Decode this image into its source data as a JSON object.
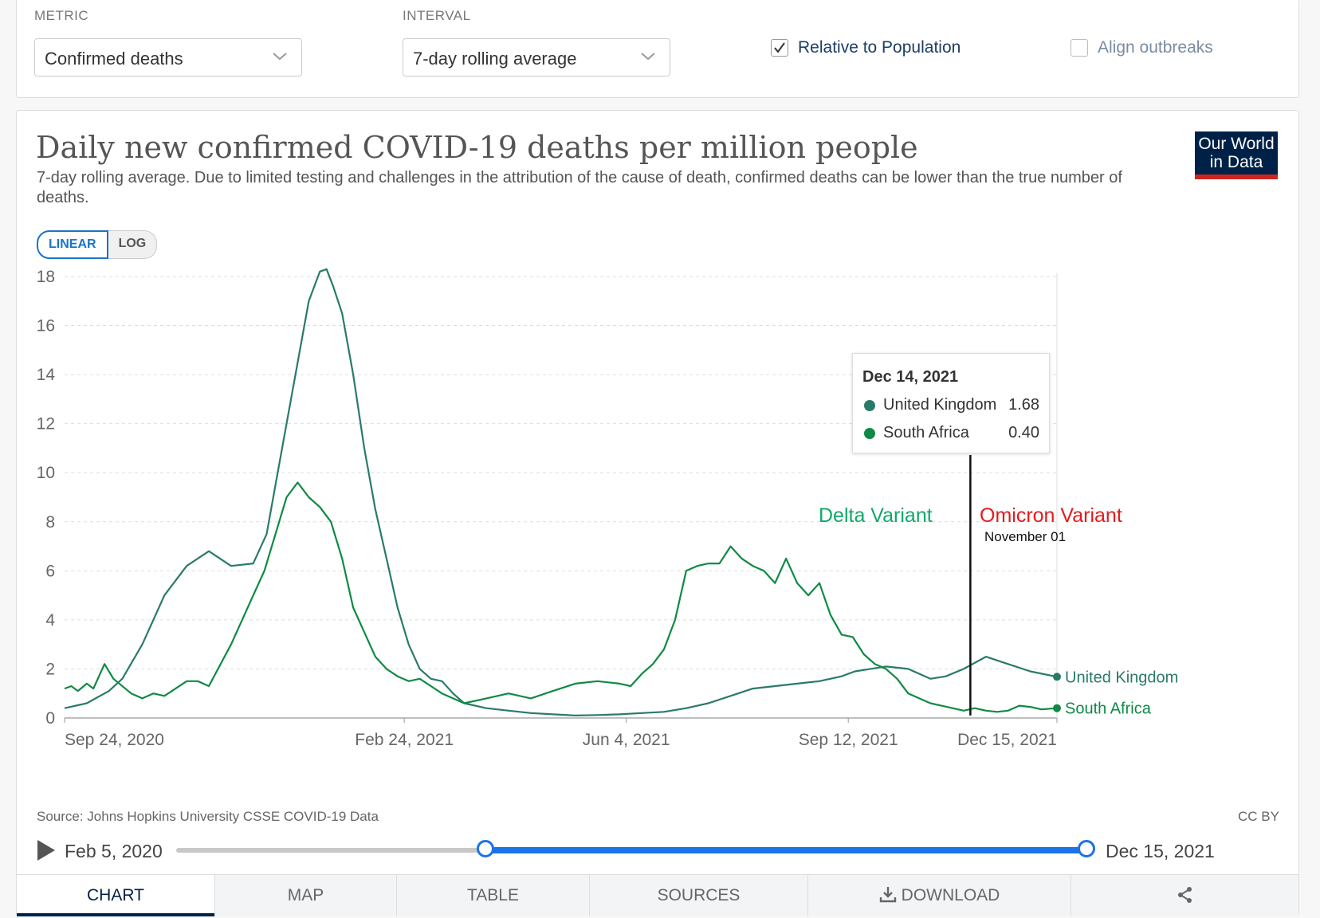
{
  "controls": {
    "metric_label": "METRIC",
    "metric_value": "Confirmed deaths",
    "interval_label": "INTERVAL",
    "interval_value": "7-day rolling average",
    "relative_label": "Relative to Population",
    "relative_checked": true,
    "align_label": "Align outbreaks",
    "align_checked": false
  },
  "logo": {
    "line1": "Our World",
    "line2": "in Data"
  },
  "scale": {
    "linear": "LINEAR",
    "log": "LOG",
    "active": "LINEAR"
  },
  "chart_data": {
    "type": "line",
    "title": "Daily new confirmed COVID-19 deaths per million people",
    "subtitle": "7-day rolling average. Due to limited testing and challenges in the attribution of the cause of death, confirmed deaths can be lower than the true number of deaths.",
    "xlabel": "",
    "ylabel": "",
    "ylim": [
      0,
      18
    ],
    "yticks": [
      0,
      2,
      4,
      6,
      8,
      10,
      12,
      14,
      16,
      18
    ],
    "xlim": [
      0,
      447
    ],
    "xticks": [
      {
        "day": 0,
        "label": "Sep 24, 2020"
      },
      {
        "day": 153,
        "label": "Feb 24, 2021"
      },
      {
        "day": 253,
        "label": "Jun 4, 2021"
      },
      {
        "day": 353,
        "label": "Sep 12, 2021"
      },
      {
        "day": 447,
        "label": "Dec 15, 2021"
      }
    ],
    "series": [
      {
        "name": "United Kingdom",
        "color": "#2a7a6a",
        "x": [
          0,
          10,
          20,
          26,
          35,
          45,
          55,
          65,
          75,
          85,
          91,
          95,
          100,
          110,
          115,
          118,
          121,
          125,
          130,
          135,
          140,
          145,
          150,
          155,
          160,
          165,
          170,
          175,
          180,
          190,
          200,
          210,
          220,
          230,
          240,
          250,
          260,
          270,
          280,
          290,
          300,
          310,
          320,
          330,
          340,
          350,
          356,
          363,
          370,
          380,
          390,
          397,
          405,
          415,
          425,
          435,
          447
        ],
        "values": [
          0.4,
          0.6,
          1.1,
          1.6,
          3.0,
          5.0,
          6.2,
          6.8,
          6.2,
          6.3,
          7.5,
          9.5,
          12.0,
          17.0,
          18.2,
          18.3,
          17.6,
          16.5,
          14.0,
          11.0,
          8.5,
          6.5,
          4.5,
          3.0,
          2.0,
          1.6,
          1.5,
          1.0,
          0.6,
          0.4,
          0.3,
          0.2,
          0.15,
          0.1,
          0.12,
          0.15,
          0.2,
          0.25,
          0.4,
          0.6,
          0.9,
          1.2,
          1.3,
          1.4,
          1.5,
          1.7,
          1.9,
          2.0,
          2.1,
          2.0,
          1.6,
          1.7,
          2.0,
          2.5,
          2.2,
          1.9,
          1.68
        ]
      },
      {
        "name": "South Africa",
        "color": "#0e8a45",
        "x": [
          0,
          3,
          6,
          10,
          13,
          18,
          22,
          30,
          35,
          40,
          45,
          50,
          55,
          60,
          65,
          75,
          85,
          90,
          95,
          100,
          105,
          110,
          115,
          120,
          125,
          130,
          135,
          140,
          145,
          150,
          155,
          160,
          165,
          170,
          175,
          180,
          190,
          200,
          210,
          220,
          230,
          240,
          250,
          255,
          260,
          265,
          270,
          275,
          280,
          285,
          290,
          295,
          300,
          305,
          310,
          315,
          320,
          325,
          330,
          335,
          340,
          345,
          350,
          355,
          360,
          365,
          370,
          375,
          380,
          385,
          390,
          395,
          400,
          405,
          410,
          415,
          420,
          425,
          430,
          435,
          440,
          447
        ],
        "values": [
          1.2,
          1.3,
          1.1,
          1.4,
          1.2,
          2.2,
          1.6,
          1.0,
          0.8,
          1.0,
          0.9,
          1.2,
          1.5,
          1.5,
          1.3,
          3.0,
          5.0,
          6.0,
          7.5,
          9.0,
          9.6,
          9.0,
          8.6,
          8.0,
          6.5,
          4.5,
          3.5,
          2.5,
          2.0,
          1.7,
          1.5,
          1.6,
          1.3,
          1.0,
          0.8,
          0.6,
          0.8,
          1.0,
          0.8,
          1.1,
          1.4,
          1.5,
          1.4,
          1.3,
          1.8,
          2.2,
          2.8,
          4.0,
          6.0,
          6.2,
          6.3,
          6.3,
          7.0,
          6.5,
          6.2,
          6.0,
          5.5,
          6.5,
          5.5,
          5.0,
          5.5,
          4.2,
          3.4,
          3.3,
          2.6,
          2.2,
          2.0,
          1.6,
          1.0,
          0.8,
          0.6,
          0.5,
          0.4,
          0.3,
          0.4,
          0.3,
          0.25,
          0.3,
          0.5,
          0.45,
          0.35,
          0.4
        ]
      }
    ],
    "tooltip": {
      "date": "Dec 14, 2021",
      "rows": [
        {
          "name": "United Kingdom",
          "value": "1.68",
          "color": "#2a7a6a"
        },
        {
          "name": "South Africa",
          "value": "0.40",
          "color": "#0e8a45"
        }
      ]
    },
    "annotations": {
      "delta": "Delta Variant",
      "omicron": "Omicron Variant",
      "omicron_date": "November 01",
      "marker_day": 408,
      "delta_color": "#12a86a",
      "omicron_color": "#e41a1c"
    }
  },
  "footer": {
    "source": "Source: Johns Hopkins University CSSE COVID-19 Data",
    "license": "CC BY",
    "timeline_start": "Feb 5, 2020",
    "timeline_end": "Dec 15, 2021",
    "range_start_fraction": 0.34,
    "range_end_fraction": 1.0
  },
  "tabs": {
    "chart": "CHART",
    "map": "MAP",
    "table": "TABLE",
    "sources": "SOURCES",
    "download": "DOWNLOAD"
  }
}
